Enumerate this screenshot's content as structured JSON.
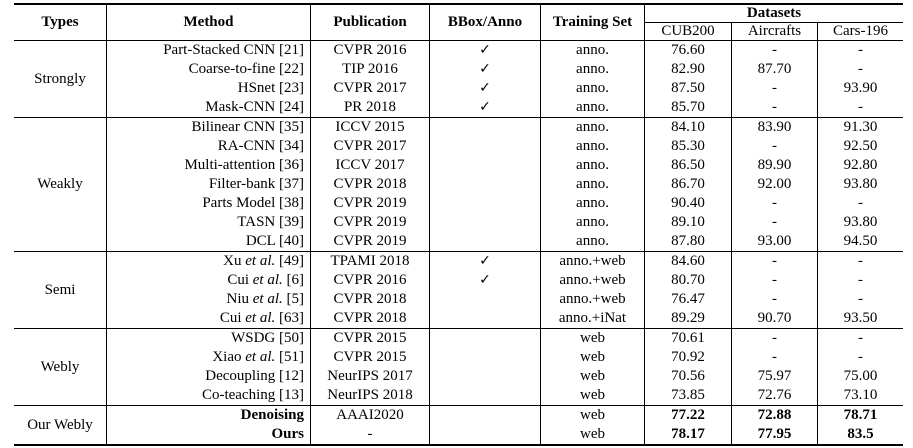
{
  "headers": {
    "types": "Types",
    "method": "Method",
    "publication": "Publication",
    "bbox": "BBox/Anno",
    "training_set": "Training Set",
    "datasets": "Datasets",
    "cub": "CUB200",
    "aircrafts": "Aircrafts",
    "cars": "Cars-196"
  },
  "groups": [
    {
      "type": "Strongly",
      "rows": [
        {
          "method": "Part-Stacked CNN [21]",
          "pub": "CVPR 2016",
          "bbox": "✓",
          "ts": "anno.",
          "cub": "76.60",
          "air": "-",
          "car": "-"
        },
        {
          "method": "Coarse-to-fine [22]",
          "pub": "TIP 2016",
          "bbox": "✓",
          "ts": "anno.",
          "cub": "82.90",
          "air": "87.70",
          "car": "-"
        },
        {
          "method": "HSnet [23]",
          "pub": "CVPR 2017",
          "bbox": "✓",
          "ts": "anno.",
          "cub": "87.50",
          "air": "-",
          "car": "93.90"
        },
        {
          "method": "Mask-CNN [24]",
          "pub": "PR 2018",
          "bbox": "✓",
          "ts": "anno.",
          "cub": "85.70",
          "air": "-",
          "car": "-"
        }
      ]
    },
    {
      "type": "Weakly",
      "rows": [
        {
          "method": "Bilinear CNN [35]",
          "pub": "ICCV 2015",
          "bbox": "",
          "ts": "anno.",
          "cub": "84.10",
          "air": "83.90",
          "car": "91.30"
        },
        {
          "method": "RA-CNN [34]",
          "pub": "CVPR 2017",
          "bbox": "",
          "ts": "anno.",
          "cub": "85.30",
          "air": "-",
          "car": "92.50"
        },
        {
          "method": "Multi-attention [36]",
          "pub": "ICCV 2017",
          "bbox": "",
          "ts": "anno.",
          "cub": "86.50",
          "air": "89.90",
          "car": "92.80"
        },
        {
          "method": "Filter-bank [37]",
          "pub": "CVPR 2018",
          "bbox": "",
          "ts": "anno.",
          "cub": "86.70",
          "air": "92.00",
          "car": "93.80"
        },
        {
          "method": "Parts Model [38]",
          "pub": "CVPR 2019",
          "bbox": "",
          "ts": "anno.",
          "cub": "90.40",
          "air": "-",
          "car": "-"
        },
        {
          "method": "TASN [39]",
          "pub": "CVPR 2019",
          "bbox": "",
          "ts": "anno.",
          "cub": "89.10",
          "air": "-",
          "car": "93.80"
        },
        {
          "method": "DCL [40]",
          "pub": "CVPR 2019",
          "bbox": "",
          "ts": "anno.",
          "cub": "87.80",
          "air": "93.00",
          "car": "94.50"
        }
      ]
    },
    {
      "type": "Semi",
      "rows": [
        {
          "author": "Xu",
          "etal": "et al.",
          "ref": "[49]",
          "pub": "TPAMI 2018",
          "bbox": "✓",
          "ts": "anno.+web",
          "cub": "84.60",
          "air": "-",
          "car": "-"
        },
        {
          "author": "Cui",
          "etal": "et al.",
          "ref": "[6]",
          "pub": "CVPR 2016",
          "bbox": "✓",
          "ts": "anno.+web",
          "cub": "80.70",
          "air": "-",
          "car": "-"
        },
        {
          "author": "Niu",
          "etal": "et al.",
          "ref": "[5]",
          "pub": "CVPR 2018",
          "bbox": "",
          "ts": "anno.+web",
          "cub": "76.47",
          "air": "-",
          "car": "-"
        },
        {
          "author": "Cui",
          "etal": "et al.",
          "ref": "[63]",
          "pub": "CVPR 2018",
          "bbox": "",
          "ts": "anno.+iNat",
          "cub": "89.29",
          "air": "90.70",
          "car": "93.50"
        }
      ]
    },
    {
      "type": "Webly",
      "rows": [
        {
          "method": "WSDG [50]",
          "pub": "CVPR 2015",
          "bbox": "",
          "ts": "web",
          "cub": "70.61",
          "air": "-",
          "car": "-"
        },
        {
          "author": "Xiao",
          "etal": "et al.",
          "ref": "[51]",
          "pub": "CVPR 2015",
          "bbox": "",
          "ts": "web",
          "cub": "70.92",
          "air": "-",
          "car": "-"
        },
        {
          "method": "Decoupling [12]",
          "pub": "NeurIPS 2017",
          "bbox": "",
          "ts": "web",
          "cub": "70.56",
          "air": "75.97",
          "car": "75.00"
        },
        {
          "method": "Co-teaching [13]",
          "pub": "NeurIPS 2018",
          "bbox": "",
          "ts": "web",
          "cub": "73.85",
          "air": "72.76",
          "car": "73.10"
        }
      ]
    },
    {
      "type": "Our Webly",
      "rows": [
        {
          "method": "Denoising",
          "pub": "AAAI2020",
          "bbox": "",
          "ts": "web",
          "cub": "77.22",
          "air": "72.88",
          "car": "78.71"
        },
        {
          "method": "Ours",
          "pub": "-",
          "bbox": "",
          "ts": "web",
          "cub": "78.17",
          "air": "77.95",
          "car": "83.5"
        }
      ]
    }
  ]
}
